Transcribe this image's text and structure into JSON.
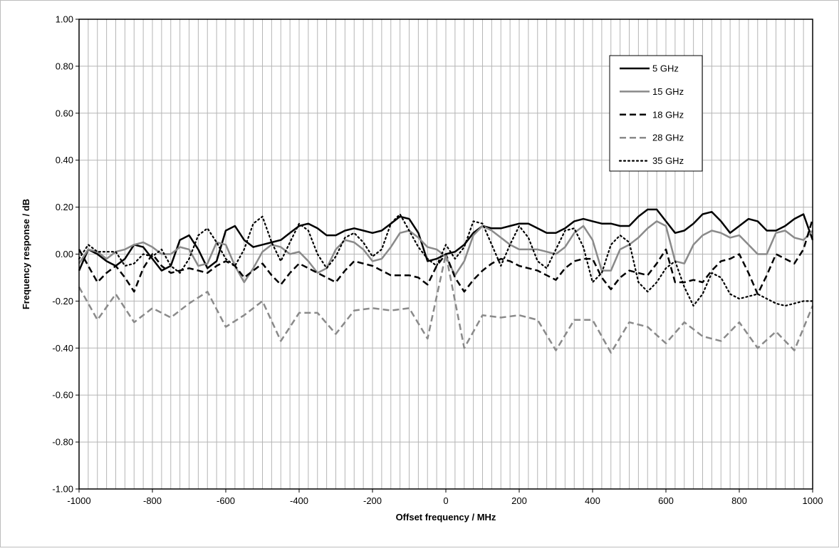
{
  "chart_data": {
    "type": "line",
    "xlabel": "Offset frequency / MHz",
    "ylabel": "Frequency response / dB",
    "xlim": [
      -1000,
      1000
    ],
    "ylim": [
      -1.0,
      1.0
    ],
    "x_ticks": [
      "-1000",
      "-800",
      "-600",
      "-400",
      "-200",
      "0",
      "200",
      "400",
      "600",
      "800",
      "1000"
    ],
    "y_ticks": [
      "1.00",
      "0.80",
      "0.60",
      "0.40",
      "0.20",
      "0.00",
      "-0.20",
      "-0.40",
      "-0.60",
      "-0.80",
      "-1.00"
    ],
    "x_minor_step": 25,
    "grid": true,
    "legend_position": "top-right",
    "series": [
      {
        "name": "5 GHz",
        "color": "#000000",
        "style": "solid",
        "x": [
          -1000,
          -975,
          -950,
          -925,
          -900,
          -875,
          -850,
          -825,
          -800,
          -775,
          -750,
          -725,
          -700,
          -675,
          -650,
          -625,
          -600,
          -575,
          -550,
          -525,
          -500,
          -475,
          -450,
          -425,
          -400,
          -375,
          -350,
          -325,
          -300,
          -275,
          -250,
          -225,
          -200,
          -175,
          -150,
          -125,
          -100,
          -75,
          -50,
          -25,
          0,
          25,
          50,
          75,
          100,
          125,
          150,
          175,
          200,
          225,
          250,
          275,
          300,
          325,
          350,
          375,
          400,
          425,
          450,
          475,
          500,
          525,
          550,
          575,
          600,
          625,
          650,
          675,
          700,
          725,
          750,
          775,
          800,
          825,
          850,
          875,
          900,
          925,
          950,
          975,
          1000
        ],
        "y": [
          -0.07,
          0.02,
          0.0,
          -0.03,
          -0.05,
          -0.02,
          0.04,
          0.03,
          -0.02,
          -0.07,
          -0.05,
          0.06,
          0.08,
          0.02,
          -0.06,
          -0.03,
          0.1,
          0.12,
          0.06,
          0.03,
          0.04,
          0.05,
          0.06,
          0.09,
          0.12,
          0.13,
          0.11,
          0.08,
          0.08,
          0.1,
          0.11,
          0.1,
          0.09,
          0.1,
          0.13,
          0.16,
          0.15,
          0.09,
          -0.03,
          -0.02,
          0.0,
          0.01,
          0.04,
          0.09,
          0.12,
          0.11,
          0.11,
          0.12,
          0.13,
          0.13,
          0.11,
          0.09,
          0.09,
          0.11,
          0.14,
          0.15,
          0.14,
          0.13,
          0.13,
          0.12,
          0.12,
          0.16,
          0.19,
          0.19,
          0.14,
          0.09,
          0.1,
          0.13,
          0.17,
          0.18,
          0.14,
          0.09,
          0.12,
          0.15,
          0.14,
          0.1,
          0.1,
          0.12,
          0.15,
          0.17,
          0.06
        ]
      },
      {
        "name": "15 GHz",
        "color": "#8a8a8a",
        "style": "solid",
        "x": [
          -1000,
          -975,
          -950,
          -925,
          -900,
          -875,
          -850,
          -825,
          -800,
          -775,
          -750,
          -725,
          -700,
          -675,
          -650,
          -625,
          -600,
          -575,
          -550,
          -525,
          -500,
          -475,
          -450,
          -425,
          -400,
          -375,
          -350,
          -325,
          -300,
          -275,
          -250,
          -225,
          -200,
          -175,
          -150,
          -125,
          -100,
          -75,
          -50,
          -25,
          0,
          25,
          50,
          75,
          100,
          125,
          150,
          175,
          200,
          225,
          250,
          275,
          300,
          325,
          350,
          375,
          400,
          425,
          450,
          475,
          500,
          525,
          550,
          575,
          600,
          625,
          650,
          675,
          700,
          725,
          750,
          775,
          800,
          825,
          850,
          875,
          900,
          925,
          950,
          975,
          1000
        ],
        "y": [
          -0.04,
          0.02,
          0.01,
          -0.02,
          0.01,
          0.02,
          0.04,
          0.05,
          0.03,
          0.0,
          0.0,
          0.03,
          0.02,
          -0.05,
          -0.04,
          0.05,
          0.04,
          -0.05,
          -0.12,
          -0.06,
          0.01,
          0.04,
          0.03,
          0.0,
          0.01,
          -0.03,
          -0.08,
          -0.06,
          0.02,
          0.06,
          0.05,
          0.02,
          -0.03,
          -0.02,
          0.03,
          0.09,
          0.1,
          0.07,
          0.03,
          0.02,
          -0.01,
          -0.09,
          -0.03,
          0.08,
          0.12,
          0.1,
          0.07,
          0.04,
          0.02,
          0.02,
          0.02,
          0.01,
          0.0,
          0.03,
          0.09,
          0.12,
          0.06,
          -0.07,
          -0.07,
          0.02,
          0.04,
          0.07,
          0.11,
          0.14,
          0.12,
          -0.03,
          -0.04,
          0.04,
          0.08,
          0.1,
          0.09,
          0.07,
          0.08,
          0.04,
          0.0,
          0.0,
          0.09,
          0.1,
          0.07,
          0.06,
          0.1
        ]
      },
      {
        "name": "18 GHz",
        "color": "#000000",
        "style": "dashed",
        "x": [
          -1000,
          -975,
          -950,
          -925,
          -900,
          -875,
          -850,
          -825,
          -800,
          -775,
          -750,
          -725,
          -700,
          -675,
          -650,
          -625,
          -600,
          -575,
          -550,
          -525,
          -500,
          -475,
          -450,
          -425,
          -400,
          -375,
          -350,
          -325,
          -300,
          -275,
          -250,
          -225,
          -200,
          -175,
          -150,
          -125,
          -100,
          -75,
          -50,
          -25,
          0,
          25,
          50,
          75,
          100,
          125,
          150,
          175,
          200,
          225,
          250,
          275,
          300,
          325,
          350,
          375,
          400,
          425,
          450,
          475,
          500,
          525,
          550,
          575,
          600,
          625,
          650,
          675,
          700,
          725,
          750,
          775,
          800,
          825,
          850,
          875,
          900,
          925,
          950,
          975,
          1000
        ],
        "y": [
          0.02,
          -0.05,
          -0.12,
          -0.08,
          -0.05,
          -0.1,
          -0.16,
          -0.06,
          0.0,
          -0.05,
          -0.08,
          -0.07,
          -0.06,
          -0.07,
          -0.08,
          -0.05,
          -0.03,
          -0.05,
          -0.1,
          -0.07,
          -0.04,
          -0.09,
          -0.13,
          -0.08,
          -0.04,
          -0.06,
          -0.08,
          -0.1,
          -0.12,
          -0.07,
          -0.03,
          -0.04,
          -0.05,
          -0.07,
          -0.09,
          -0.09,
          -0.09,
          -0.1,
          -0.13,
          -0.05,
          0.0,
          -0.1,
          -0.16,
          -0.11,
          -0.07,
          -0.04,
          -0.02,
          -0.03,
          -0.05,
          -0.06,
          -0.07,
          -0.09,
          -0.11,
          -0.06,
          -0.03,
          -0.02,
          -0.02,
          -0.1,
          -0.15,
          -0.1,
          -0.07,
          -0.08,
          -0.09,
          -0.04,
          0.02,
          -0.12,
          -0.12,
          -0.11,
          -0.12,
          -0.07,
          -0.03,
          -0.02,
          0.0,
          -0.08,
          -0.17,
          -0.09,
          0.0,
          -0.02,
          -0.04,
          0.02,
          0.15
        ]
      },
      {
        "name": "28 GHz",
        "color": "#8a8a8a",
        "style": "dashed",
        "x": [
          -1000,
          -950,
          -900,
          -850,
          -800,
          -750,
          -700,
          -650,
          -600,
          -550,
          -500,
          -450,
          -400,
          -350,
          -300,
          -250,
          -200,
          -150,
          -100,
          -50,
          0,
          50,
          100,
          150,
          200,
          250,
          300,
          350,
          400,
          450,
          500,
          550,
          600,
          650,
          700,
          750,
          800,
          850,
          900,
          950,
          1000
        ],
        "y": [
          -0.14,
          -0.28,
          -0.17,
          -0.29,
          -0.23,
          -0.27,
          -0.21,
          -0.16,
          -0.31,
          -0.26,
          -0.2,
          -0.37,
          -0.25,
          -0.25,
          -0.34,
          -0.24,
          -0.23,
          -0.24,
          -0.23,
          -0.36,
          0.0,
          -0.4,
          -0.26,
          -0.27,
          -0.26,
          -0.28,
          -0.41,
          -0.28,
          -0.28,
          -0.42,
          -0.29,
          -0.31,
          -0.38,
          -0.29,
          -0.35,
          -0.37,
          -0.29,
          -0.4,
          -0.33,
          -0.41,
          -0.22
        ]
      },
      {
        "name": "35 GHz",
        "color": "#000000",
        "style": "dotted",
        "x": [
          -1000,
          -975,
          -950,
          -925,
          -900,
          -875,
          -850,
          -825,
          -800,
          -775,
          -750,
          -725,
          -700,
          -675,
          -650,
          -625,
          -600,
          -575,
          -550,
          -525,
          -500,
          -475,
          -450,
          -425,
          -400,
          -375,
          -350,
          -325,
          -300,
          -275,
          -250,
          -225,
          -200,
          -175,
          -150,
          -125,
          -100,
          -75,
          -50,
          -25,
          0,
          25,
          50,
          75,
          100,
          125,
          150,
          175,
          200,
          225,
          250,
          275,
          300,
          325,
          350,
          375,
          400,
          425,
          450,
          475,
          500,
          525,
          550,
          575,
          600,
          625,
          650,
          675,
          700,
          725,
          750,
          775,
          800,
          825,
          850,
          875,
          900,
          925,
          950,
          975,
          1000
        ],
        "y": [
          -0.02,
          0.04,
          0.01,
          0.01,
          0.01,
          -0.05,
          -0.04,
          0.0,
          -0.01,
          0.02,
          -0.05,
          -0.08,
          -0.02,
          0.08,
          0.11,
          0.05,
          -0.02,
          -0.05,
          0.02,
          0.13,
          0.16,
          0.05,
          -0.03,
          0.05,
          0.13,
          0.1,
          0.0,
          -0.06,
          -0.01,
          0.07,
          0.09,
          0.05,
          -0.01,
          0.02,
          0.13,
          0.17,
          0.1,
          0.03,
          -0.02,
          -0.05,
          0.04,
          -0.02,
          0.03,
          0.14,
          0.13,
          0.04,
          -0.05,
          0.04,
          0.12,
          0.07,
          -0.03,
          -0.06,
          0.02,
          0.1,
          0.11,
          0.03,
          -0.12,
          -0.08,
          0.04,
          0.08,
          0.05,
          -0.12,
          -0.16,
          -0.12,
          -0.06,
          -0.03,
          -0.14,
          -0.22,
          -0.17,
          -0.08,
          -0.1,
          -0.17,
          -0.19,
          -0.18,
          -0.17,
          -0.19,
          -0.21,
          -0.22,
          -0.21,
          -0.2,
          -0.2
        ]
      }
    ]
  }
}
